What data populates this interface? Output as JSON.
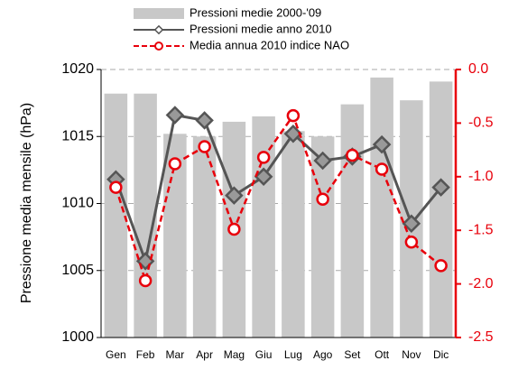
{
  "chart_data": {
    "type": "bar-line",
    "y_label": "Pressione media mensile (hPa)",
    "categories": [
      "Gen",
      "Feb",
      "Mar",
      "Apr",
      "Mag",
      "Giu",
      "Lug",
      "Ago",
      "Set",
      "Ott",
      "Nov",
      "Dic"
    ],
    "series": [
      {
        "name": "Pressioni medie 2000-'09",
        "type": "bar",
        "color": "#c8c8c8",
        "values": [
          1018.2,
          1018.2,
          1015.2,
          1015.0,
          1016.1,
          1016.5,
          1015.4,
          1015.0,
          1017.4,
          1019.4,
          1017.7,
          1019.1
        ]
      },
      {
        "name": "Pressioni medie anno 2010",
        "type": "line",
        "color": "#555555",
        "values": [
          1011.8,
          1005.7,
          1016.6,
          1016.2,
          1010.6,
          1012.0,
          1015.2,
          1013.2,
          1013.5,
          1014.4,
          1008.5,
          1011.2
        ]
      },
      {
        "name": "Media annua 2010 indice NAO",
        "type": "line",
        "axis": "y2",
        "color": "#e8000b",
        "values": [
          -1.1,
          -1.97,
          -0.88,
          -0.72,
          -1.49,
          -0.82,
          -0.43,
          -1.21,
          -0.8,
          -0.93,
          -1.61,
          -1.83
        ]
      }
    ],
    "ylim": [
      1000,
      1020
    ],
    "yticks": [
      1000,
      1005,
      1010,
      1015,
      1020
    ],
    "y2lim": [
      -2.5,
      0
    ],
    "y2ticks": [
      -2.5,
      {
        "value": -2,
        "label": "-2.0"
      },
      -1.5,
      {
        "value": -1,
        "label": "-1.0"
      },
      -0.5,
      {
        "value": 0,
        "label": "0.0"
      }
    ],
    "grid": true
  }
}
